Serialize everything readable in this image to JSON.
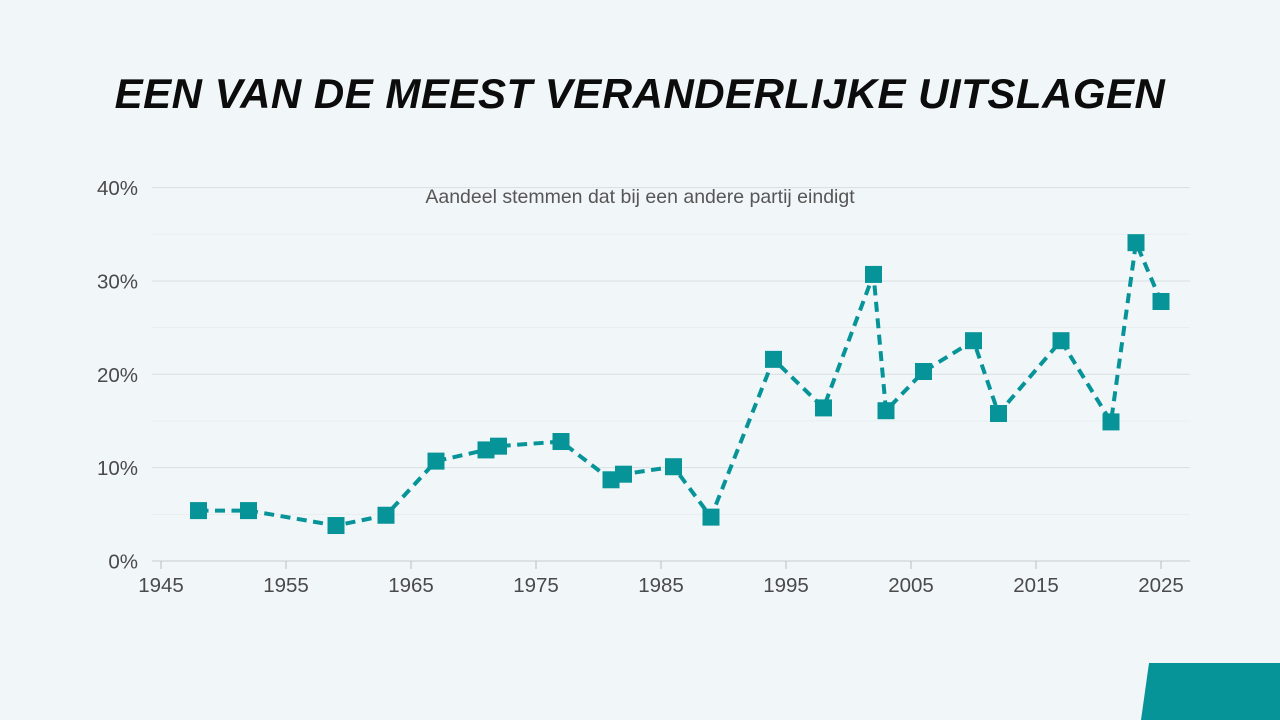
{
  "page": {
    "background_color": "#f1f6f8",
    "accent_color": "#069499",
    "text_color": "#0c0c0c",
    "axis_label_color": "#4a4a4a"
  },
  "header": {
    "title": "EEN VAN DE MEEST VERANDERLIJKE UITSLAGEN"
  },
  "chart_data": {
    "type": "line",
    "title": "Aandeel stemmen dat bij een andere partij eindigt",
    "line_style": "dashed",
    "marker": "square",
    "legend": "none",
    "grid": "horizontal major every 10%, minor every 5%",
    "xlabel": "",
    "ylabel": "",
    "xlim": [
      1944,
      2027.5
    ],
    "ylim": [
      0,
      40
    ],
    "xticks": [
      1945,
      1955,
      1965,
      1975,
      1985,
      1995,
      2005,
      2015,
      2025
    ],
    "yticks": [
      0,
      10,
      20,
      30,
      40
    ],
    "ytick_suffix": "%",
    "x": [
      1948,
      1952,
      1959,
      1963,
      1967,
      1971,
      1972,
      1977,
      1981,
      1982,
      1986,
      1989,
      1994,
      1998,
      2002,
      2003,
      2006,
      2010,
      2012,
      2017,
      2021,
      2023,
      2025
    ],
    "values": [
      5.4,
      5.4,
      3.8,
      4.9,
      10.7,
      11.9,
      12.3,
      12.8,
      8.7,
      9.3,
      10.1,
      4.7,
      21.6,
      16.4,
      30.7,
      16.1,
      20.3,
      23.6,
      15.8,
      23.6,
      14.9,
      34.1,
      27.8
    ]
  },
  "decoration": {
    "corner_shape": "teal parallelogram, bottom-right corner"
  }
}
